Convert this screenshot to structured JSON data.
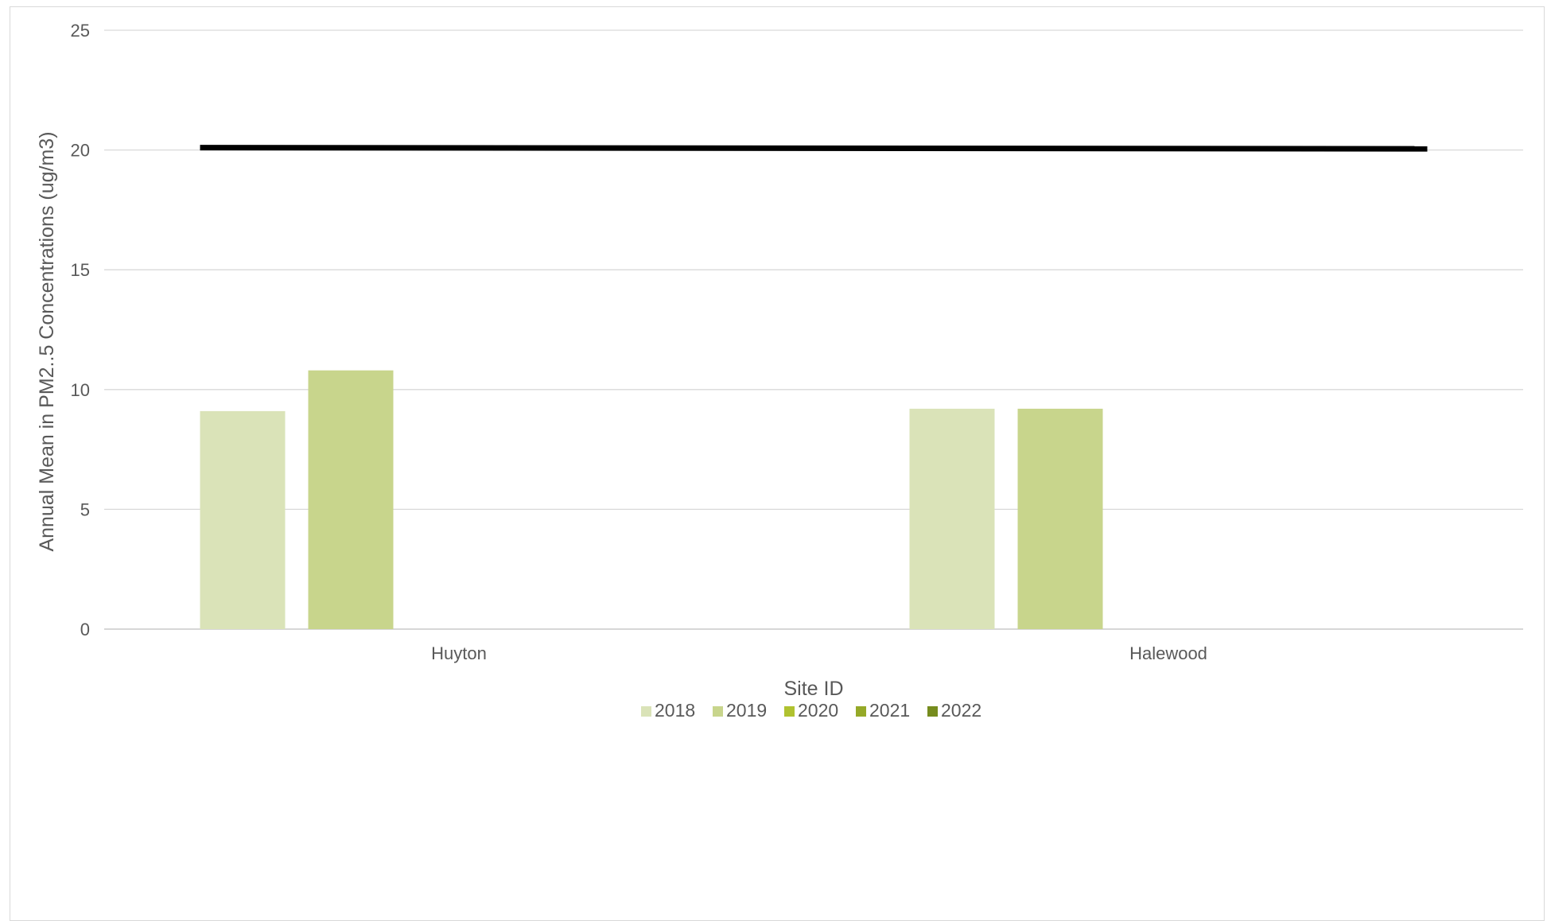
{
  "chart_data": {
    "type": "bar",
    "title": "",
    "xlabel": "Site ID",
    "ylabel": "Annual Mean in PM2..5 Concentrations (ug/m3)",
    "ylim": [
      0,
      25
    ],
    "yticks": [
      0,
      5,
      10,
      15,
      20,
      25
    ],
    "grid": true,
    "legend_position": "bottom",
    "categories": [
      "Huyton",
      "Halewood"
    ],
    "series": [
      {
        "name": "2018",
        "color": "#dae3b8",
        "values": [
          9.1,
          9.2
        ]
      },
      {
        "name": "2019",
        "color": "#c8d58c",
        "values": [
          10.8,
          9.2
        ]
      },
      {
        "name": "2020",
        "color": "#b0c230",
        "values": [
          null,
          null
        ]
      },
      {
        "name": "2021",
        "color": "#95a928",
        "values": [
          null,
          null
        ]
      },
      {
        "name": "2022",
        "color": "#768c1e",
        "values": [
          null,
          null
        ]
      }
    ],
    "reference_line": {
      "values": [
        20.1,
        20.05
      ],
      "color": "#000000"
    }
  }
}
